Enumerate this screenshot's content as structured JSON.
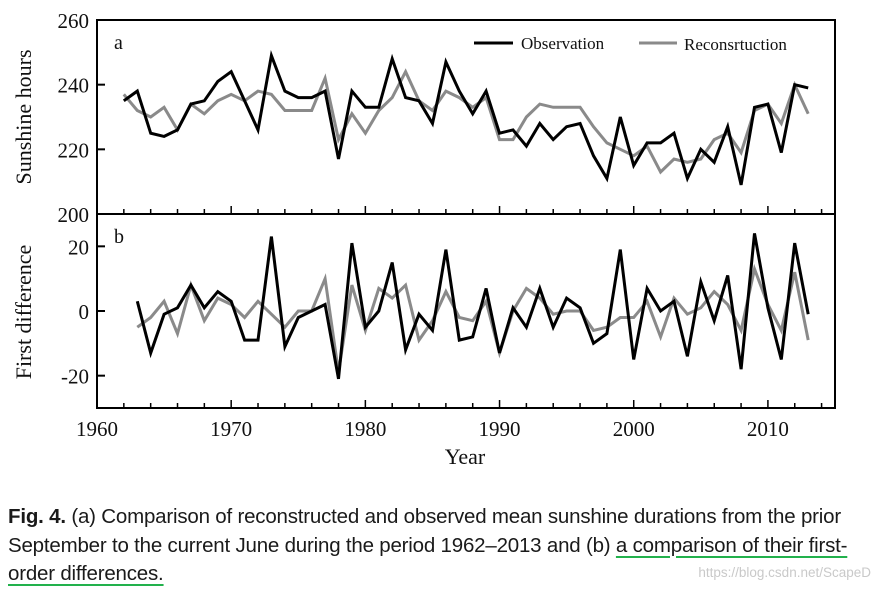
{
  "chart_data": [
    {
      "type": "line",
      "panel_label": "a",
      "ylabel": "Sunshine hours",
      "ylim": [
        200,
        260
      ],
      "yticks": [
        200,
        220,
        240,
        260
      ],
      "xlim": [
        1960,
        2015
      ],
      "grid": false,
      "legend": "top-right",
      "x": [
        1962,
        1963,
        1964,
        1965,
        1966,
        1967,
        1968,
        1969,
        1970,
        1971,
        1972,
        1973,
        1974,
        1975,
        1976,
        1977,
        1978,
        1979,
        1980,
        1981,
        1982,
        1983,
        1984,
        1985,
        1986,
        1987,
        1988,
        1989,
        1990,
        1991,
        1992,
        1993,
        1994,
        1995,
        1996,
        1997,
        1998,
        1999,
        2000,
        2001,
        2002,
        2003,
        2004,
        2005,
        2006,
        2007,
        2008,
        2009,
        2010,
        2011,
        2012,
        2013
      ],
      "series": [
        {
          "name": "Observation",
          "color": "#000000",
          "values": [
            235,
            238,
            225,
            224,
            226,
            234,
            235,
            241,
            244,
            235,
            226,
            249,
            238,
            236,
            236,
            238,
            217,
            238,
            233,
            233,
            248,
            236,
            235,
            228,
            247,
            238,
            231,
            238,
            225,
            226,
            221,
            228,
            223,
            227,
            228,
            218,
            211,
            230,
            215,
            222,
            222,
            225,
            211,
            220,
            216,
            227,
            209,
            233,
            234,
            219,
            240,
            239
          ]
        },
        {
          "name": "Reconsrtuction",
          "color": "#8a8a8a",
          "values": [
            237,
            232,
            230,
            233,
            226,
            234,
            231,
            235,
            237,
            235,
            238,
            237,
            232,
            232,
            232,
            242,
            223,
            231,
            225,
            232,
            236,
            244,
            235,
            232,
            238,
            236,
            233,
            236,
            223,
            223,
            230,
            234,
            233,
            233,
            233,
            227,
            222,
            220,
            218,
            221,
            213,
            217,
            216,
            217,
            223,
            225,
            219,
            232,
            234,
            228,
            240,
            231
          ]
        }
      ]
    },
    {
      "type": "line",
      "panel_label": "b",
      "ylabel": "First difference",
      "xlabel": "Year",
      "ylim": [
        -30,
        30
      ],
      "yticks": [
        -20,
        0,
        20
      ],
      "xlim": [
        1960,
        2015
      ],
      "xticks": [
        1960,
        1970,
        1980,
        1990,
        2000,
        2010
      ],
      "grid": false,
      "x": [
        1963,
        1964,
        1965,
        1966,
        1967,
        1968,
        1969,
        1970,
        1971,
        1972,
        1973,
        1974,
        1975,
        1976,
        1977,
        1978,
        1979,
        1980,
        1981,
        1982,
        1983,
        1984,
        1985,
        1986,
        1987,
        1988,
        1989,
        1990,
        1991,
        1992,
        1993,
        1994,
        1995,
        1996,
        1997,
        1998,
        1999,
        2000,
        2001,
        2002,
        2003,
        2004,
        2005,
        2006,
        2007,
        2008,
        2009,
        2010,
        2011,
        2012,
        2013
      ],
      "series": [
        {
          "name": "Observation",
          "color": "#000000",
          "values": [
            3,
            -13,
            -1,
            1,
            8,
            1,
            6,
            3,
            -9,
            -9,
            23,
            -11,
            -2,
            0,
            2,
            -21,
            21,
            -5,
            0,
            15,
            -12,
            -1,
            -6,
            19,
            -9,
            -8,
            7,
            -13,
            1,
            -5,
            7,
            -5,
            4,
            1,
            -10,
            -7,
            19,
            -15,
            7,
            0,
            3,
            -14,
            9,
            -3,
            11,
            -18,
            24,
            1,
            -15,
            21,
            -1
          ]
        },
        {
          "name": "Reconsrtuction",
          "color": "#8a8a8a",
          "values": [
            -5,
            -2,
            3,
            -7,
            8,
            -3,
            4,
            2,
            -2,
            3,
            -1,
            -5,
            0,
            0,
            10,
            -19,
            8,
            -6,
            7,
            4,
            8,
            -9,
            -3,
            6,
            -2,
            -3,
            3,
            -13,
            0,
            7,
            4,
            -1,
            0,
            0,
            -6,
            -5,
            -2,
            -2,
            3,
            -8,
            4,
            -1,
            1,
            6,
            2,
            -6,
            13,
            2,
            -6,
            12,
            -9
          ]
        }
      ]
    }
  ],
  "caption": {
    "label": "Fig. 4.",
    "text_plain": " (a) Comparison of reconstructed and observed mean sunshine durations from the prior September to the current June during the period 1962–2013 and (b) ",
    "text_highlight": "a comparison of their first-order differences."
  },
  "watermark": "https://blog.csdn.net/ScapeD"
}
